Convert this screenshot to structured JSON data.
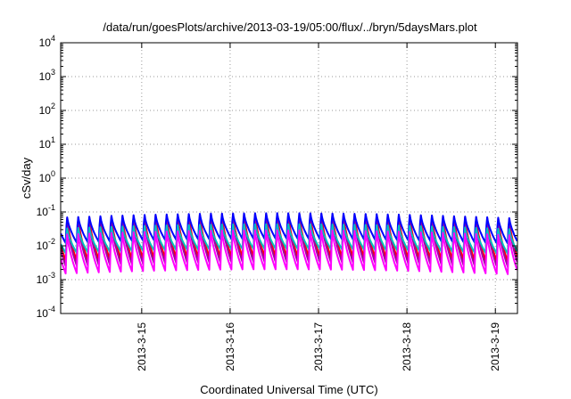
{
  "chart_data": {
    "type": "line",
    "title": "/data/run/goesPlots/archive/2013-03-19/05:00/flux/../bryn/5daysMars.plot",
    "xlabel": "Coordinated Universal Time (UTC)",
    "ylabel": "cSv/day",
    "yscale": "log",
    "ylim": [
      0.0001,
      10000
    ],
    "y_ticks": [
      {
        "base": "10",
        "exp": "-4",
        "value": 0.0001
      },
      {
        "base": "10",
        "exp": "-3",
        "value": 0.001
      },
      {
        "base": "10",
        "exp": "-2",
        "value": 0.01
      },
      {
        "base": "10",
        "exp": "-1",
        "value": 0.1
      },
      {
        "base": "10",
        "exp": "0",
        "value": 1
      },
      {
        "base": "10",
        "exp": "1",
        "value": 10
      },
      {
        "base": "10",
        "exp": "2",
        "value": 100
      },
      {
        "base": "10",
        "exp": "3",
        "value": 1000
      },
      {
        "base": "10",
        "exp": "4",
        "value": 10000
      }
    ],
    "xlim": [
      "2013-03-14 02:00",
      "2013-03-19 06:00"
    ],
    "x_ticks": [
      {
        "label": "2013-3-15",
        "value": "2013-03-15 00:00"
      },
      {
        "label": "2013-3-16",
        "value": "2013-03-16 00:00"
      },
      {
        "label": "2013-3-17",
        "value": "2013-03-17 00:00"
      },
      {
        "label": "2013-3-18",
        "value": "2013-03-18 00:00"
      },
      {
        "label": "2013-3-19",
        "value": "2013-03-19 00:00"
      }
    ],
    "grid": true,
    "sawtooth_period_hours": 3,
    "series": [
      {
        "color": "#ff0000",
        "peak": 0.095,
        "trough": 0.0035
      },
      {
        "color": "#a000a0",
        "peak": 0.07,
        "trough": 0.0025
      },
      {
        "color": "#0000ff",
        "peak": 0.085,
        "trough": 0.012
      },
      {
        "color": "#00c0c0",
        "peak": 0.04,
        "trough": 0.006
      },
      {
        "color": "#ff00ff",
        "peak": 0.03,
        "trough": 0.0015
      }
    ]
  }
}
